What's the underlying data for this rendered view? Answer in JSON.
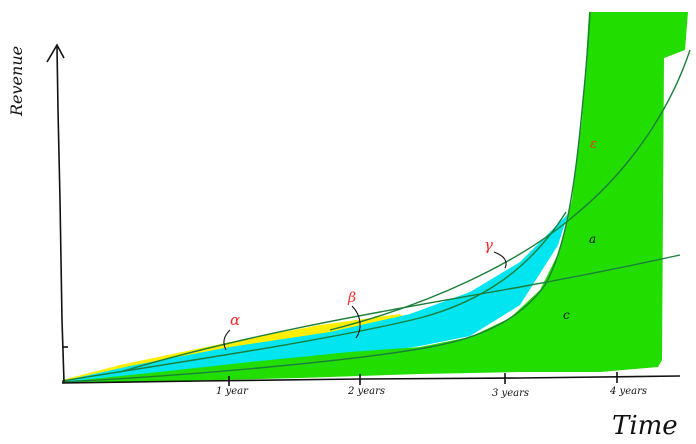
{
  "axes": {
    "y_label": "Revenue",
    "x_label": "Time",
    "x_ticks": [
      "1 year",
      "2 years",
      "3 years",
      "4 years"
    ]
  },
  "annotations": {
    "alpha": "α",
    "beta": "β",
    "gamma": "γ",
    "epsilon": "ε",
    "a": "a",
    "c": "c"
  },
  "colors": {
    "yellow_region": "#ffee00",
    "cyan_region": "#00e5f0",
    "green_region": "#22dd00",
    "curve": "#1b7f3a",
    "axis": "#111111",
    "red_annotation": "#ff2b2b"
  }
}
